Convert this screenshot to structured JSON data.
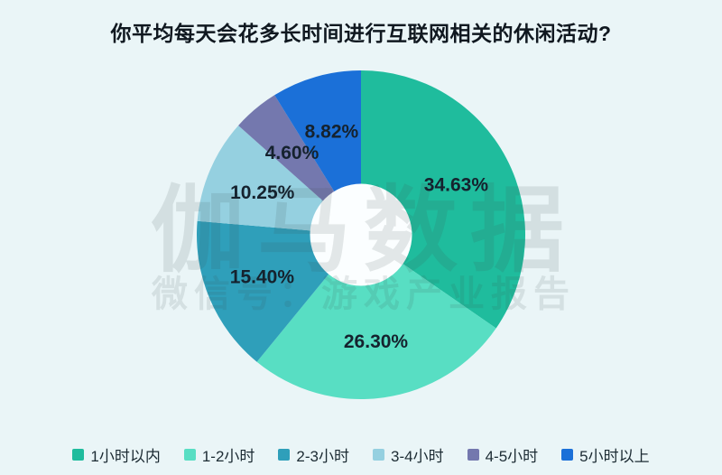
{
  "title": "你平均每天会花多长时间进行互联网相关的休闲活动?",
  "watermark": {
    "line1": "伽马数据",
    "line2": "微信号：游戏产业报告"
  },
  "colors": {
    "background": "#eaf5f7",
    "title_text": "#101820",
    "label_text": "#15222e",
    "legend_text": "#1c2b33",
    "watermark": "#3c4a4a",
    "donut_hole": "#fbfeff"
  },
  "chart_data": {
    "type": "pie",
    "subtype": "donut",
    "title": "你平均每天会花多长时间进行互联网相关的休闲活动?",
    "categories": [
      "1小时以内",
      "1-2小时",
      "2-3小时",
      "3-4小时",
      "4-5小时",
      "5小时以上"
    ],
    "values": [
      34.63,
      26.3,
      15.4,
      10.25,
      4.6,
      8.82
    ],
    "labels": [
      "34.63%",
      "26.30%",
      "15.40%",
      "10.25%",
      "4.60%",
      "8.82%"
    ],
    "colors": [
      "#1fbc9d",
      "#58dec3",
      "#2f9fba",
      "#95d0e0",
      "#7478ae",
      "#1b70d8"
    ],
    "start_angle_deg": 0,
    "direction": "clockwise",
    "legend_position": "bottom",
    "data_labels": "percent-inside"
  }
}
